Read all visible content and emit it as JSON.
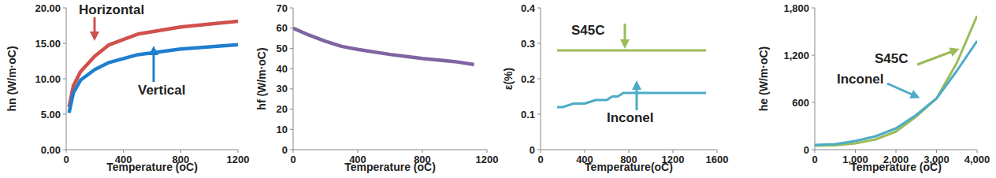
{
  "chart_data": [
    {
      "type": "line",
      "xlabel": "Temperature (oC)",
      "ylabel": "hn (W/m·oC)",
      "xlim": [
        0,
        1200
      ],
      "xticks": [
        0,
        400,
        800,
        1200
      ],
      "ylim": [
        0,
        20
      ],
      "yticks": [
        {
          "value": 0,
          "label": "0.00"
        },
        {
          "value": 5,
          "label": "5.00"
        },
        {
          "value": 10,
          "label": "10.00"
        },
        {
          "value": 15,
          "label": "15.00"
        },
        {
          "value": 20,
          "label": "20.00"
        }
      ],
      "grid": false,
      "series": [
        {
          "name": "Horizontal",
          "color": "#d0504d",
          "x": [
            20,
            50,
            100,
            200,
            300,
            500,
            800,
            1200
          ],
          "values": [
            6.0,
            9.0,
            11.0,
            13.2,
            14.8,
            16.3,
            17.3,
            18.1
          ]
        },
        {
          "name": "Vertical",
          "color": "#1f7fcf",
          "x": [
            20,
            50,
            100,
            200,
            300,
            500,
            800,
            1200
          ],
          "values": [
            5.2,
            8.0,
            9.8,
            11.3,
            12.3,
            13.4,
            14.2,
            14.8
          ]
        }
      ]
    },
    {
      "type": "line",
      "xlabel": "Temperature (oC)",
      "ylabel": "hf (W/m·oC)",
      "xlim": [
        0,
        1200
      ],
      "xticks": [
        0,
        400,
        800,
        1200
      ],
      "ylim": [
        0,
        70
      ],
      "yticks": [
        0,
        10,
        20,
        30,
        40,
        50,
        60,
        70
      ],
      "grid": false,
      "series": [
        {
          "name": "hf",
          "color": "#8064a2",
          "x": [
            0,
            100,
            200,
            300,
            400,
            600,
            800,
            1000,
            1120
          ],
          "values": [
            60,
            56.5,
            53.5,
            51,
            49.5,
            47,
            45,
            43.5,
            42
          ]
        }
      ]
    },
    {
      "type": "line",
      "xlabel": "Temperature(oC)",
      "ylabel": "ε(%)",
      "xlim": [
        0,
        1600
      ],
      "xticks": [
        0,
        400,
        800,
        1200,
        1600
      ],
      "ylim": [
        0,
        0.4
      ],
      "yticks": [
        0,
        0.1,
        0.2,
        0.3,
        0.4
      ],
      "grid": false,
      "series": [
        {
          "name": "S45C",
          "color": "#9bbb59",
          "x": [
            150,
            1500
          ],
          "values": [
            0.28,
            0.28
          ]
        },
        {
          "name": "Inconel",
          "color": "#4bacc6",
          "x": [
            150,
            200,
            250,
            300,
            400,
            450,
            500,
            600,
            650,
            700,
            750,
            1500
          ],
          "values": [
            0.12,
            0.12,
            0.125,
            0.13,
            0.13,
            0.135,
            0.14,
            0.14,
            0.15,
            0.15,
            0.16,
            0.16
          ]
        }
      ]
    },
    {
      "type": "line",
      "xlabel": "Temperature (oC)",
      "ylabel": "he (W/m·oC)",
      "xlim": [
        0,
        4000
      ],
      "xticks": [
        0,
        {
          "value": 1000,
          "label": "1,000"
        },
        {
          "value": 2000,
          "label": "2,000"
        },
        {
          "value": 3000,
          "label": "3,000"
        },
        {
          "value": 4000,
          "label": "4,000"
        }
      ],
      "ylim": [
        0,
        1800
      ],
      "yticks": [
        0,
        600,
        {
          "value": 1200,
          "label": "1,200"
        },
        {
          "value": 1800,
          "label": "1,800"
        }
      ],
      "grid": false,
      "series": [
        {
          "name": "S45C",
          "color": "#9bbb59",
          "x": [
            0,
            500,
            1000,
            1500,
            2000,
            2500,
            3000,
            3500,
            4000
          ],
          "values": [
            50,
            55,
            80,
            130,
            230,
            420,
            650,
            1100,
            1700
          ]
        },
        {
          "name": "Inconel",
          "color": "#4bacc6",
          "x": [
            0,
            500,
            1000,
            1500,
            2000,
            2500,
            3000,
            3500,
            4000
          ],
          "values": [
            60,
            70,
            110,
            170,
            270,
            440,
            650,
            1000,
            1380
          ]
        }
      ]
    }
  ]
}
